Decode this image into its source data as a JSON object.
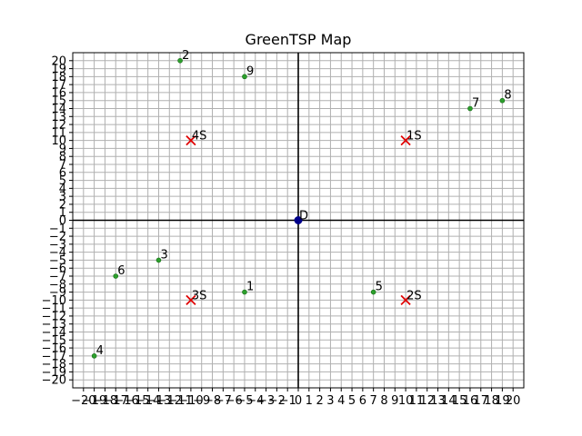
{
  "chart_data": {
    "type": "scatter",
    "title": "GreenTSP Map",
    "xlabel": "",
    "ylabel": "",
    "xlim": [
      -21,
      21
    ],
    "ylim": [
      -21,
      21
    ],
    "grid": true,
    "xticks": [
      -20,
      -19,
      -18,
      -17,
      -16,
      -15,
      -14,
      -13,
      -12,
      -11,
      -10,
      -9,
      -8,
      -7,
      -6,
      -5,
      -4,
      -3,
      -2,
      -1,
      0,
      1,
      2,
      3,
      4,
      5,
      6,
      7,
      8,
      9,
      10,
      11,
      12,
      13,
      14,
      15,
      16,
      17,
      18,
      19,
      20
    ],
    "yticks": [
      -20,
      -19,
      -18,
      -17,
      -16,
      -15,
      -14,
      -13,
      -12,
      -11,
      -10,
      -9,
      -8,
      -7,
      -6,
      -5,
      -4,
      -3,
      -2,
      -1,
      0,
      1,
      2,
      3,
      4,
      5,
      6,
      7,
      8,
      9,
      10,
      11,
      12,
      13,
      14,
      15,
      16,
      17,
      18,
      19,
      20
    ],
    "depot": {
      "label": "D",
      "x": 0,
      "y": 0,
      "color": "#00008b"
    },
    "stations": [
      {
        "label": "1S",
        "x": 10,
        "y": 10
      },
      {
        "label": "2S",
        "x": 10,
        "y": -10
      },
      {
        "label": "3S",
        "x": -10,
        "y": -10
      },
      {
        "label": "4S",
        "x": -10,
        "y": 10
      }
    ],
    "customers": [
      {
        "label": "1",
        "x": -5,
        "y": -9
      },
      {
        "label": "2",
        "x": -11,
        "y": 20
      },
      {
        "label": "3",
        "x": -13,
        "y": -5
      },
      {
        "label": "4",
        "x": -19,
        "y": -17
      },
      {
        "label": "5",
        "x": 7,
        "y": -9
      },
      {
        "label": "6",
        "x": -17,
        "y": -7
      },
      {
        "label": "7",
        "x": 16,
        "y": 14
      },
      {
        "label": "8",
        "x": 19,
        "y": 15
      },
      {
        "label": "9",
        "x": -5,
        "y": 18
      }
    ],
    "colors": {
      "station": "#e00000",
      "customer": "#2ca02c",
      "axis": "#000000",
      "grid": "#b0b0b0"
    }
  }
}
